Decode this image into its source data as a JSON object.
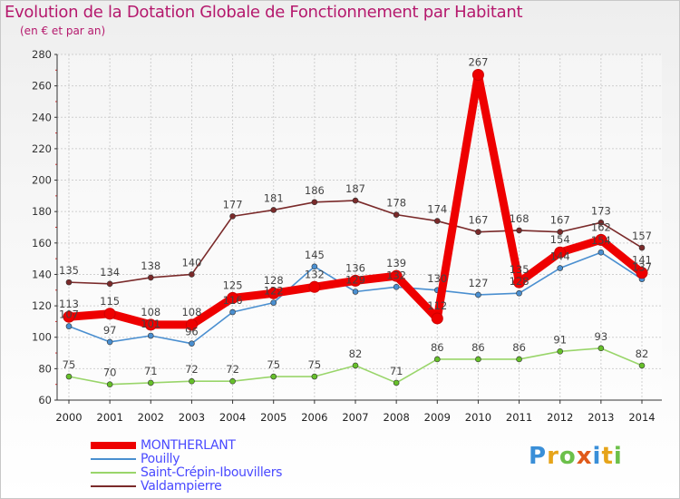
{
  "chart_data": {
    "type": "line",
    "title": "Evolution de la Dotation Globale de Fonctionnement par Habitant",
    "subtitle": "(en € et par an)",
    "xlabel": "",
    "ylabel": "",
    "ylim": [
      60,
      280
    ],
    "yticks": [
      60,
      80,
      100,
      120,
      140,
      160,
      180,
      200,
      220,
      240,
      260,
      280
    ],
    "x": [
      "2000",
      "2001",
      "2002",
      "2003",
      "2004",
      "2005",
      "2006",
      "2007",
      "2008",
      "2009",
      "2010",
      "2011",
      "2012",
      "2013",
      "2014"
    ],
    "series": [
      {
        "name": "Valdampierre",
        "color": "#7a2a2a",
        "values": [
          135,
          134,
          138,
          140,
          177,
          181,
          186,
          187,
          178,
          174,
          167,
          168,
          167,
          173,
          157
        ]
      },
      {
        "name": "Saint-Crépin-Ibouvillers",
        "color": "#99d56a",
        "dot": "#66c02a",
        "values": [
          75,
          70,
          71,
          72,
          72,
          75,
          75,
          82,
          71,
          86,
          86,
          86,
          91,
          93,
          82
        ]
      },
      {
        "name": "Pouilly",
        "color": "#4a8fd0",
        "values": [
          107,
          97,
          101,
          96,
          116,
          122,
          145,
          129,
          132,
          130,
          127,
          128,
          144,
          154,
          137
        ]
      },
      {
        "name": "MONTHERLANT",
        "color": "#ee0000",
        "values": [
          113,
          115,
          108,
          108,
          125,
          128,
          132,
          136,
          139,
          112,
          267,
          135,
          154,
          162,
          141
        ]
      }
    ],
    "legend": [
      "MONTHERLANT",
      "Pouilly",
      "Saint-Crépin-Ibouvillers",
      "Valdampierre"
    ],
    "legend_position": "bottom-left"
  },
  "logo": {
    "p": "P",
    "r": "r",
    "o": "o",
    "x": "x",
    "i": "i",
    "t": "t",
    "i2": "i"
  }
}
